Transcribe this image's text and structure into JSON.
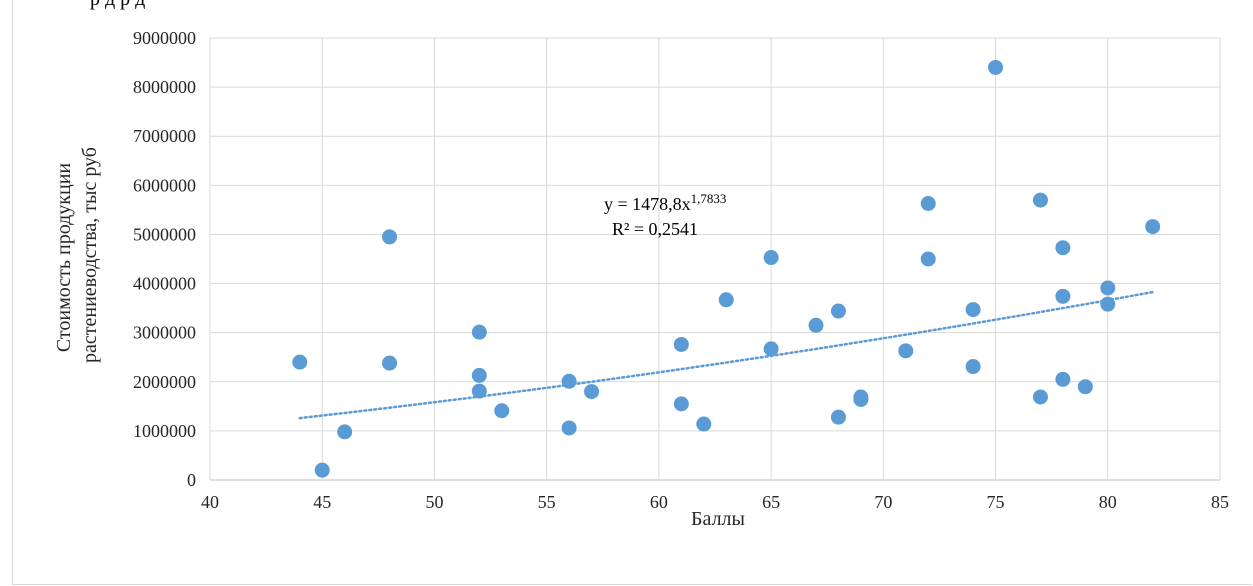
{
  "header_text": "р                                д р д",
  "chart_data": {
    "type": "scatter",
    "title": "",
    "xlabel": "Баллы",
    "ylabel_lines": [
      "Стоимость продукции",
      "растениеводства, тыс руб"
    ],
    "xlim": [
      40,
      85
    ],
    "ylim": [
      0,
      9000000
    ],
    "x_ticks": [
      40,
      45,
      50,
      55,
      60,
      65,
      70,
      75,
      80,
      85
    ],
    "y_ticks": [
      0,
      1000000,
      2000000,
      3000000,
      4000000,
      5000000,
      6000000,
      7000000,
      8000000,
      9000000
    ],
    "grid": true,
    "legend": "none",
    "marker_color": "#5b9bd5",
    "trend_color": "#5b9bd5",
    "points": [
      {
        "x": 44,
        "y": 2400000
      },
      {
        "x": 45,
        "y": 200000
      },
      {
        "x": 46,
        "y": 980000
      },
      {
        "x": 48,
        "y": 4950000
      },
      {
        "x": 48,
        "y": 2380000
      },
      {
        "x": 52,
        "y": 3010000
      },
      {
        "x": 52,
        "y": 2130000
      },
      {
        "x": 52,
        "y": 1810000
      },
      {
        "x": 53,
        "y": 1410000
      },
      {
        "x": 56,
        "y": 2010000
      },
      {
        "x": 56,
        "y": 1060000
      },
      {
        "x": 57,
        "y": 1800000
      },
      {
        "x": 61,
        "y": 2760000
      },
      {
        "x": 61,
        "y": 1550000
      },
      {
        "x": 62,
        "y": 1140000
      },
      {
        "x": 63,
        "y": 3670000
      },
      {
        "x": 65,
        "y": 4530000
      },
      {
        "x": 65,
        "y": 2670000
      },
      {
        "x": 67,
        "y": 3150000
      },
      {
        "x": 68,
        "y": 3440000
      },
      {
        "x": 68,
        "y": 1280000
      },
      {
        "x": 69,
        "y": 1690000
      },
      {
        "x": 69,
        "y": 1640000
      },
      {
        "x": 71,
        "y": 2630000
      },
      {
        "x": 72,
        "y": 5630000
      },
      {
        "x": 72,
        "y": 4500000
      },
      {
        "x": 74,
        "y": 3470000
      },
      {
        "x": 74,
        "y": 2310000
      },
      {
        "x": 75,
        "y": 8400000
      },
      {
        "x": 77,
        "y": 5700000
      },
      {
        "x": 77,
        "y": 1690000
      },
      {
        "x": 78,
        "y": 4730000
      },
      {
        "x": 78,
        "y": 3740000
      },
      {
        "x": 78,
        "y": 2050000
      },
      {
        "x": 79,
        "y": 1900000
      },
      {
        "x": 80,
        "y": 3910000
      },
      {
        "x": 80,
        "y": 3580000
      },
      {
        "x": 82,
        "y": 5160000
      }
    ],
    "trendline": {
      "type": "power",
      "a": 1478.8,
      "b": 1.7833,
      "x_range": [
        44,
        82
      ],
      "equation_base": "y = 1478,8x",
      "equation_exp": "1,7833",
      "r2_label": "R² = 0,2541"
    }
  }
}
